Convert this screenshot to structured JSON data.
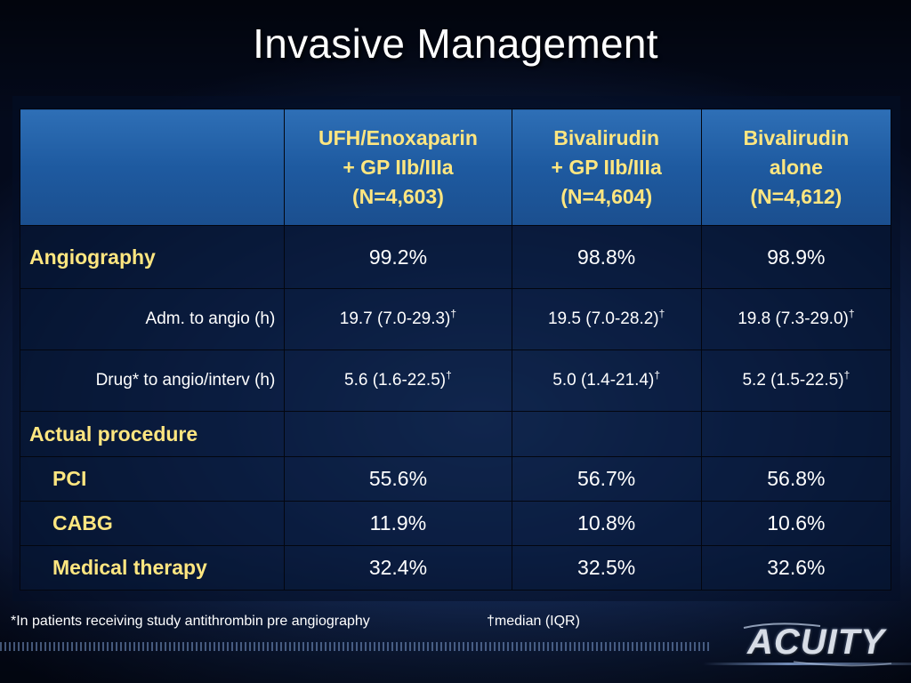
{
  "slide": {
    "title": "Invasive Management"
  },
  "table": {
    "header": {
      "col1": [
        "UFH/Enoxaparin",
        "+ GP IIb/IIIa",
        "(N=4,603)"
      ],
      "col2": [
        "Bivalirudin",
        "+ GP IIb/IIIa",
        "(N=4,604)"
      ],
      "col3": [
        "Bivalirudin",
        "alone",
        "(N=4,612)"
      ]
    },
    "rows": [
      {
        "label": "Angiography",
        "values": [
          "99.2%",
          "98.8%",
          "98.9%"
        ]
      },
      {
        "label": "Adm. to angio (h)",
        "values": [
          "19.7 (7.0-29.3)",
          "19.5 (7.0-28.2)",
          "19.8 (7.3-29.0)"
        ],
        "mark": "†"
      },
      {
        "label": "Drug* to angio/interv (h)",
        "values": [
          "5.6 (1.6-22.5)",
          "5.0 (1.4-21.4)",
          "5.2 (1.5-22.5)"
        ],
        "mark": "†"
      },
      {
        "label": "Actual procedure",
        "values": [
          "",
          "",
          ""
        ]
      },
      {
        "label": "PCI",
        "values": [
          "55.6%",
          "56.7%",
          "56.8%"
        ]
      },
      {
        "label": "CABG",
        "values": [
          "11.9%",
          "10.8%",
          "10.6%"
        ]
      },
      {
        "label": "Medical therapy",
        "values": [
          "32.4%",
          "32.5%",
          "32.6%"
        ]
      }
    ]
  },
  "footnotes": {
    "antithrombin": "*In patients receiving study antithrombin pre angiography",
    "median": "†median (IQR)"
  },
  "logo": {
    "text": "ACUITY"
  },
  "colors": {
    "background": "#0d1d40",
    "header": "#1e5aa0",
    "highlight": "#ffe680",
    "text": "#ffffff"
  }
}
